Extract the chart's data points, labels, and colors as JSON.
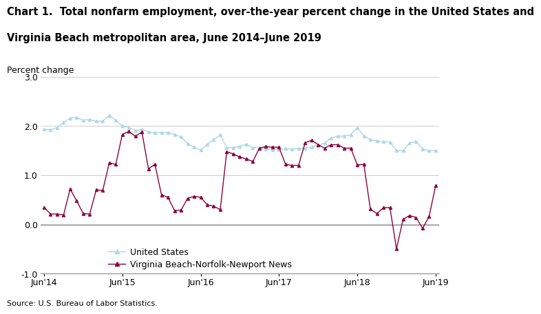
{
  "title_line1": "Chart 1.  Total nonfarm employment, over-the-year percent change in the United States and",
  "title_line2": "Virginia Beach metropolitan area, June 2014–June 2019",
  "ylabel": "Percent change",
  "source": "Source: U.S. Bureau of Labor Statistics.",
  "ylim": [
    -1.0,
    3.0
  ],
  "yticks": [
    -1.0,
    0.0,
    1.0,
    2.0,
    3.0
  ],
  "xtick_labels": [
    "Jun'14",
    "Jun'15",
    "Jun'16",
    "Jun'17",
    "Jun'18",
    "Jun'19"
  ],
  "us_color": "#add8e6",
  "va_color": "#8b003c",
  "us_marker": "^",
  "va_marker": "^",
  "us_label": "United States",
  "va_label": "Virginia Beach-Norfolk-Newport News",
  "us_data": [
    1.93,
    1.92,
    1.97,
    2.07,
    2.16,
    2.17,
    2.12,
    2.13,
    2.1,
    2.1,
    2.22,
    2.12,
    2.0,
    1.97,
    1.91,
    1.93,
    1.88,
    1.86,
    1.87,
    1.87,
    1.83,
    1.78,
    1.64,
    1.57,
    1.51,
    1.63,
    1.72,
    1.82,
    1.56,
    1.56,
    1.59,
    1.63,
    1.56,
    1.56,
    1.53,
    1.52,
    1.52,
    1.54,
    1.53,
    1.54,
    1.55,
    1.57,
    1.61,
    1.65,
    1.76,
    1.79,
    1.8,
    1.82,
    1.97,
    1.8,
    1.72,
    1.7,
    1.68,
    1.67,
    1.5,
    1.5,
    1.65,
    1.69,
    1.53,
    1.5,
    1.5
  ],
  "va_data": [
    0.35,
    0.21,
    0.21,
    0.19,
    0.72,
    0.48,
    0.22,
    0.21,
    0.7,
    0.69,
    1.25,
    1.22,
    1.83,
    1.89,
    1.79,
    1.88,
    1.13,
    1.22,
    0.6,
    0.55,
    0.28,
    0.29,
    0.53,
    0.57,
    0.55,
    0.4,
    0.37,
    0.3,
    1.48,
    1.43,
    1.37,
    1.33,
    1.28,
    1.55,
    1.58,
    1.57,
    1.57,
    1.22,
    1.2,
    1.2,
    1.66,
    1.71,
    1.62,
    1.55,
    1.62,
    1.62,
    1.55,
    1.55,
    1.21,
    1.22,
    0.31,
    0.22,
    0.34,
    0.34,
    -0.5,
    0.1,
    0.18,
    0.14,
    -0.08,
    0.16,
    0.79
  ],
  "n_points": 61,
  "title_fontsize": 10.5,
  "tick_fontsize": 9,
  "label_fontsize": 9,
  "legend_fontsize": 9,
  "source_fontsize": 8
}
